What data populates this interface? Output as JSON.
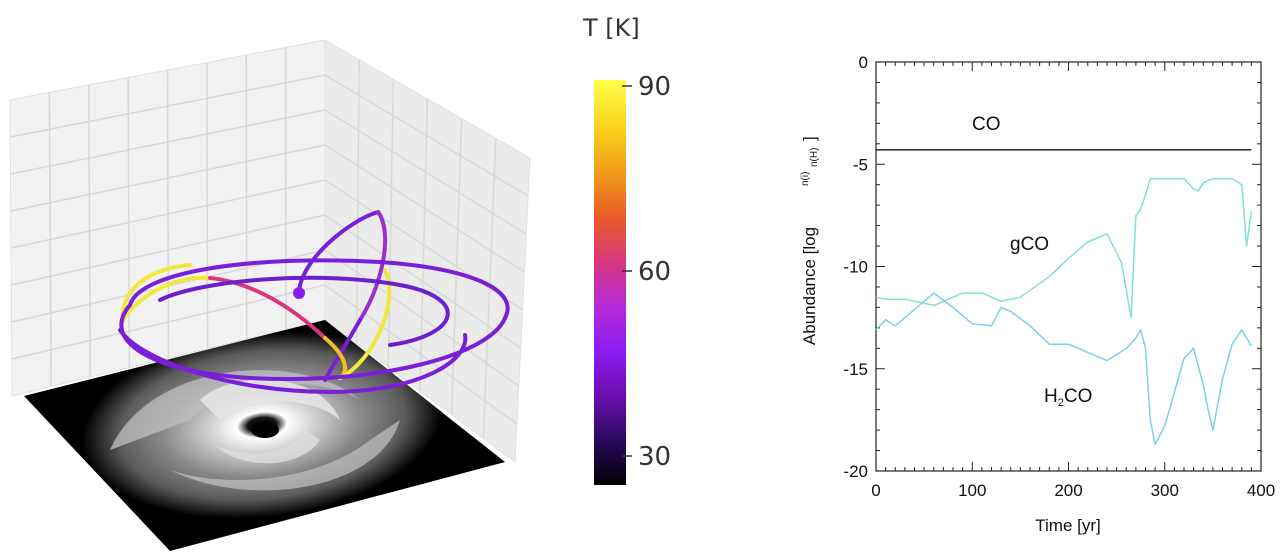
{
  "colorbar": {
    "title": "T [K]",
    "ticks": [
      "90",
      "60",
      "30"
    ],
    "range": [
      25,
      90
    ],
    "colormap": [
      "#000000",
      "#2a0a5e",
      "#6a0fb0",
      "#8b1cf0",
      "#b42ad8",
      "#d8377f",
      "#e85b28",
      "#f29a1a",
      "#f8d21a",
      "#ffff4a"
    ]
  },
  "colors": {
    "gas_line": "#000000",
    "grain_line": "#7fe0d6",
    "h2co_line": "#7fcfe8",
    "trajectory_cool": "#7a1ed8",
    "trajectory_hot": "#f2e640",
    "grid": "#d8d8d8",
    "disk_bg": "#000000"
  },
  "chart_data": [
    {
      "type": "line",
      "description_role": "3D trajectory panel",
      "colorbar_ticks": [
        90,
        60,
        30
      ]
    },
    {
      "type": "line",
      "title": "",
      "xlabel": "Time [yr]",
      "ylabel": "Abundance [log n(i)/n(H)]",
      "ylabel_main": "Abundance [log",
      "ylabel_frac_num": "n(i)",
      "ylabel_frac_den": "n(H)",
      "ylabel_close": "]",
      "xlim": [
        0,
        400
      ],
      "ylim": [
        -20,
        0
      ],
      "xticks": [
        0,
        100,
        200,
        300,
        400
      ],
      "yticks": [
        0,
        -5,
        -10,
        -15,
        -20
      ],
      "series": [
        {
          "name": "CO",
          "x": [
            0,
            390
          ],
          "y": [
            -4.3,
            -4.3
          ]
        },
        {
          "name": "gCO",
          "x": [
            0,
            10,
            30,
            60,
            90,
            110,
            130,
            150,
            180,
            200,
            220,
            240,
            255,
            265,
            270,
            275,
            280,
            285,
            300,
            320,
            330,
            335,
            340,
            350,
            360,
            370,
            380,
            385,
            390
          ],
          "y": [
            -11.5,
            -11.6,
            -11.6,
            -11.9,
            -11.3,
            -11.3,
            -11.7,
            -11.5,
            -10.5,
            -9.6,
            -8.8,
            -8.4,
            -9.8,
            -12.5,
            -7.5,
            -7.2,
            -6.5,
            -5.7,
            -5.7,
            -5.7,
            -6.2,
            -6.3,
            -5.9,
            -5.7,
            -5.7,
            -5.7,
            -6.0,
            -9.0,
            -7.3
          ]
        },
        {
          "name": "H2CO",
          "x": [
            0,
            10,
            20,
            40,
            60,
            80,
            100,
            120,
            130,
            140,
            160,
            180,
            200,
            220,
            240,
            260,
            270,
            275,
            280,
            285,
            290,
            300,
            320,
            330,
            340,
            345,
            350,
            360,
            370,
            380,
            390
          ],
          "y": [
            -13.1,
            -12.6,
            -12.9,
            -12.1,
            -11.3,
            -12.0,
            -12.8,
            -12.9,
            -12.0,
            -12.2,
            -12.9,
            -13.8,
            -13.8,
            -14.2,
            -14.6,
            -14.0,
            -13.5,
            -13.1,
            -14.0,
            -17.5,
            -18.7,
            -17.8,
            -14.5,
            -14.0,
            -15.8,
            -17.0,
            -18.0,
            -15.5,
            -13.8,
            -13.1,
            -13.9
          ]
        }
      ]
    }
  ]
}
